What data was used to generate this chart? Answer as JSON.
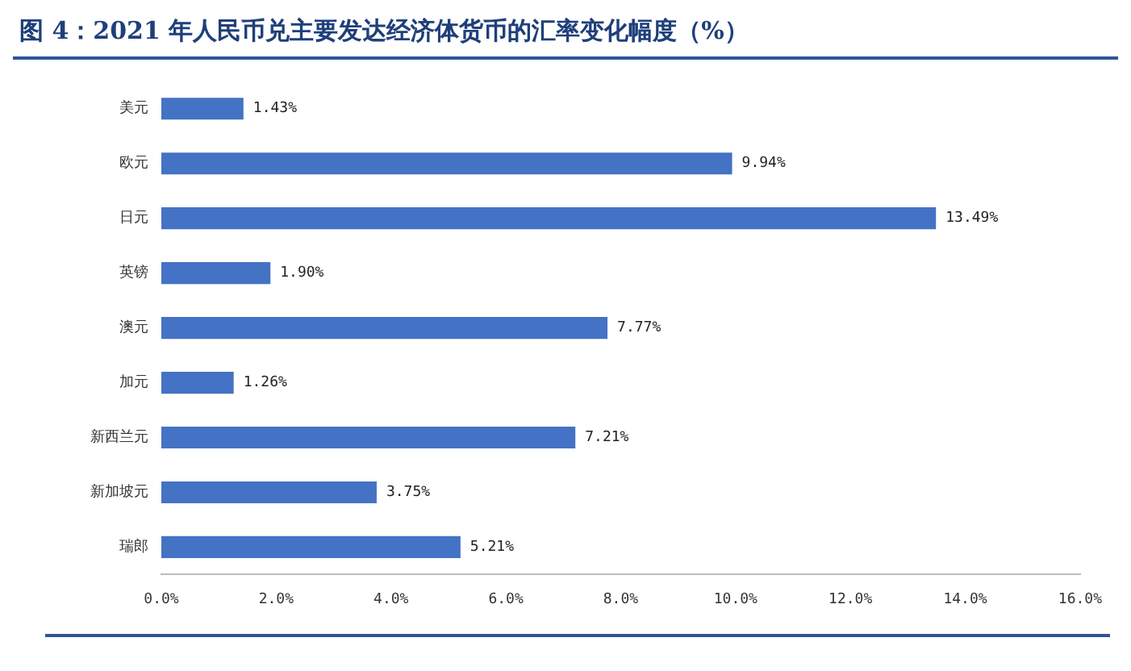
{
  "chart_data": {
    "type": "bar",
    "orientation": "horizontal",
    "title": "图 4：2021 年人民币兑主要发达经济体货币的汇率变化幅度（%）",
    "categories": [
      "美元",
      "欧元",
      "日元",
      "英镑",
      "澳元",
      "加元",
      "新西兰元",
      "新加坡元",
      "瑞郎"
    ],
    "values": [
      1.43,
      9.94,
      13.49,
      1.9,
      7.77,
      1.26,
      7.21,
      3.75,
      5.21
    ],
    "value_labels": [
      "1.43%",
      "9.94%",
      "13.49%",
      "1.90%",
      "7.77%",
      "1.26%",
      "7.21%",
      "3.75%",
      "5.21%"
    ],
    "color": "#4472c4",
    "xlim": [
      0,
      16
    ],
    "xticks": [
      {
        "value": 0,
        "label": "0.0%"
      },
      {
        "value": 2,
        "label": "2.0%"
      },
      {
        "value": 4,
        "label": "4.0%"
      },
      {
        "value": 6,
        "label": "6.0%"
      },
      {
        "value": 8,
        "label": "8.0%"
      },
      {
        "value": 10,
        "label": "10.0%"
      },
      {
        "value": 12,
        "label": "12.0%"
      },
      {
        "value": 14,
        "label": "14.0%"
      },
      {
        "value": 16,
        "label": "16.0%"
      }
    ],
    "grid": false,
    "legend": false
  }
}
